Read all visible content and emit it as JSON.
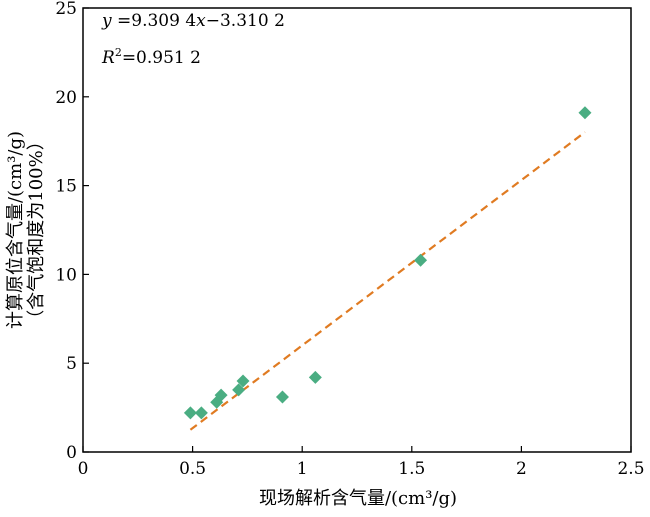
{
  "chart_data": {
    "type": "scatter",
    "title": "",
    "xlabel": "现场解析含气量/(cm³/g)",
    "ylabel": "计算原位含气量/(cm³/g)",
    "ylabel_sub": "（含气饱和度为100%）",
    "xlim": [
      0,
      2.5
    ],
    "ylim": [
      0,
      25
    ],
    "xticks": [
      0,
      0.5,
      1,
      1.5,
      2,
      2.5
    ],
    "xtick_labels": [
      "0",
      "0.5",
      "1",
      "1.5",
      "2",
      "2.5"
    ],
    "yticks": [
      0,
      5,
      10,
      15,
      20,
      25
    ],
    "ytick_labels": [
      "0",
      "5",
      "10",
      "15",
      "20",
      "25"
    ],
    "grid": false,
    "legend": "none",
    "marker": "diamond",
    "marker_color": "#4aad82",
    "fit_color": "#e07b22",
    "points": [
      {
        "x": 0.49,
        "y": 2.2
      },
      {
        "x": 0.54,
        "y": 2.2
      },
      {
        "x": 0.61,
        "y": 2.8
      },
      {
        "x": 0.63,
        "y": 3.2
      },
      {
        "x": 0.71,
        "y": 3.5
      },
      {
        "x": 0.73,
        "y": 4.0
      },
      {
        "x": 0.91,
        "y": 3.1
      },
      {
        "x": 1.06,
        "y": 4.2
      },
      {
        "x": 1.54,
        "y": 10.8
      },
      {
        "x": 2.29,
        "y": 19.1
      }
    ],
    "fit": {
      "slope": 9.3094,
      "intercept": -3.3102,
      "x_range": [
        0.49,
        2.29
      ],
      "style": "dashed"
    },
    "annotations": {
      "equation": {
        "y_var": "y",
        "mid": " =9.309 4",
        "x_var": "x",
        "tail": "−3.310 2"
      },
      "r2": {
        "var": "R",
        "sup": "2",
        "value": "=0.951 2"
      }
    }
  }
}
